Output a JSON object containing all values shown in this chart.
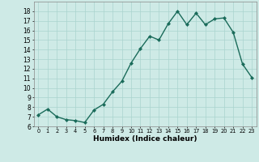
{
  "x": [
    0,
    1,
    2,
    3,
    4,
    5,
    6,
    7,
    8,
    9,
    10,
    11,
    12,
    13,
    14,
    15,
    16,
    17,
    18,
    19,
    20,
    21,
    22,
    23
  ],
  "y": [
    7.2,
    7.8,
    7.0,
    6.7,
    6.6,
    6.4,
    7.7,
    8.3,
    9.6,
    10.7,
    12.6,
    14.1,
    15.4,
    15.0,
    16.7,
    18.0,
    16.6,
    17.8,
    16.6,
    17.2,
    17.3,
    15.8,
    12.5,
    11.1
  ],
  "line_color": "#1a6b5a",
  "marker": "D",
  "marker_size": 2.0,
  "linewidth": 1.0,
  "xlabel": "Humidex (Indice chaleur)",
  "ylim": [
    6,
    19
  ],
  "xlim": [
    -0.5,
    23.5
  ],
  "yticks": [
    6,
    7,
    8,
    9,
    10,
    11,
    12,
    13,
    14,
    15,
    16,
    17,
    18
  ],
  "xticks": [
    0,
    1,
    2,
    3,
    4,
    5,
    6,
    7,
    8,
    9,
    10,
    11,
    12,
    13,
    14,
    15,
    16,
    17,
    18,
    19,
    20,
    21,
    22,
    23
  ],
  "xtick_labels": [
    "0",
    "1",
    "2",
    "3",
    "4",
    "5",
    "6",
    "7",
    "8",
    "9",
    "10",
    "11",
    "12",
    "13",
    "14",
    "15",
    "16",
    "17",
    "18",
    "19",
    "20",
    "21",
    "22",
    "23"
  ],
  "bg_color": "#ceeae6",
  "grid_color": "#aad4ce",
  "xlabel_fontsize": 6.5,
  "xlabel_fontweight": "bold",
  "ytick_fontsize": 5.5,
  "xtick_fontsize": 4.8
}
